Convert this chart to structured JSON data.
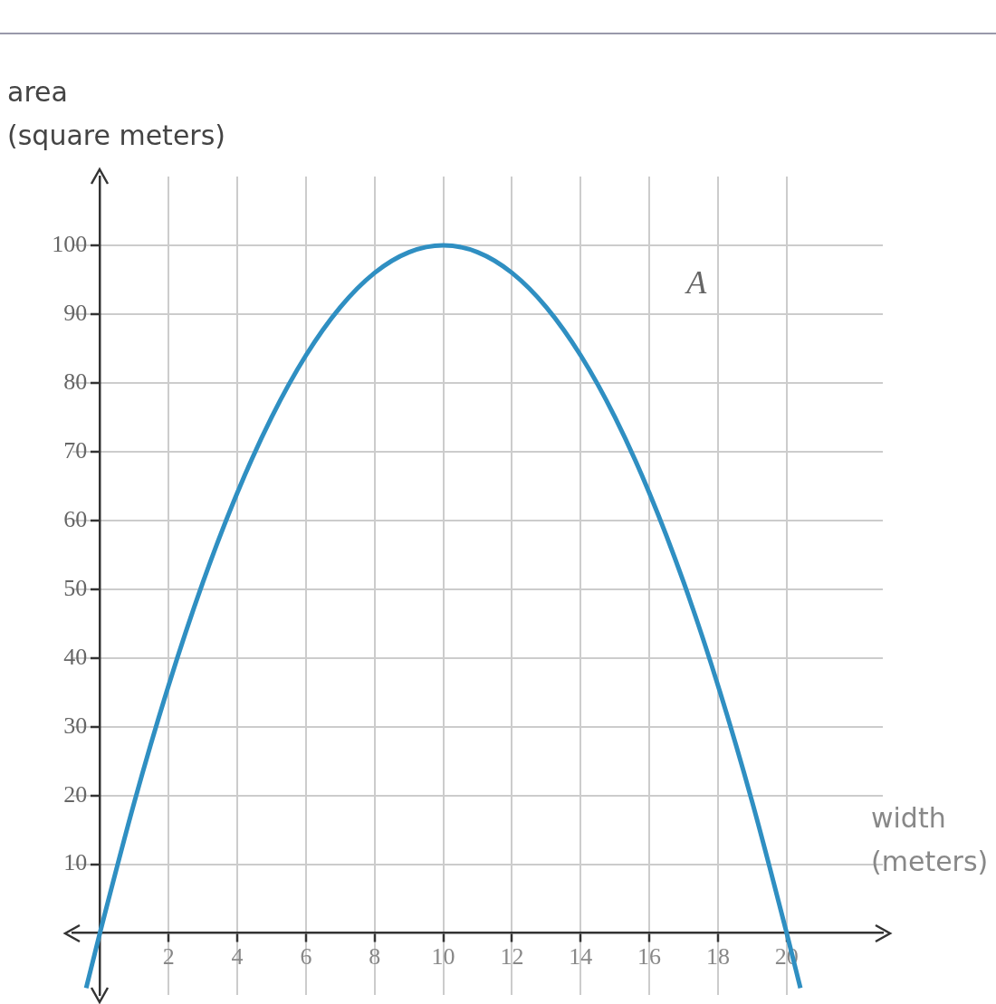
{
  "chart_data": {
    "type": "line",
    "ylabel": "area\n(square meters)",
    "xlabel": "width\n(meters)",
    "annotations": [
      "A"
    ],
    "x": [
      -0.4,
      0,
      1,
      2,
      3,
      4,
      5,
      6,
      7,
      8,
      9,
      10,
      11,
      12,
      13,
      14,
      15,
      16,
      17,
      18,
      19,
      20,
      20.4
    ],
    "series": [
      {
        "color": "#2f8fc2",
        "values": [
          -8,
          0,
          19,
          36,
          51,
          64,
          75,
          84,
          91,
          96,
          99,
          100,
          99,
          96,
          91,
          84,
          75,
          64,
          51,
          36,
          19,
          0,
          -8
        ]
      }
    ],
    "xlim": [
      -0.8,
      22.8
    ],
    "ylim": [
      -9,
      110
    ],
    "xticks": [
      2,
      4,
      6,
      8,
      10,
      12,
      14,
      16,
      18,
      20
    ],
    "yticks": [
      10,
      20,
      30,
      40,
      50,
      60,
      70,
      80,
      90,
      100
    ],
    "grid": true,
    "marker": "none",
    "line_style": "solid"
  }
}
